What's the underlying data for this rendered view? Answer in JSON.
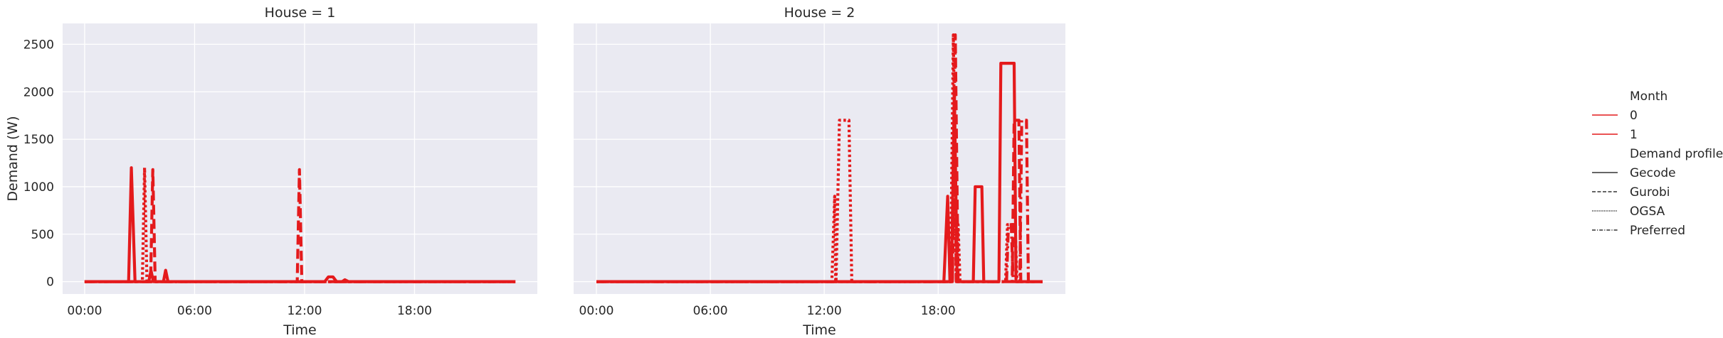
{
  "chart_data": {
    "type": "line",
    "panels": [
      {
        "title": "House = 1",
        "series": [
          {
            "month": "0",
            "profile": "Gecode",
            "points": [
              [
                0,
                0
              ],
              [
                2.4,
                0
              ],
              [
                2.55,
                1200
              ],
              [
                2.75,
                0
              ],
              [
                3.5,
                0
              ],
              [
                3.62,
                120
              ],
              [
                3.75,
                0
              ],
              [
                4.3,
                0
              ],
              [
                4.42,
                120
              ],
              [
                4.55,
                0
              ],
              [
                13.1,
                0
              ],
              [
                13.3,
                50
              ],
              [
                13.55,
                50
              ],
              [
                13.75,
                0
              ],
              [
                14.05,
                0
              ],
              [
                14.2,
                20
              ],
              [
                14.4,
                0
              ],
              [
                23.5,
                0
              ]
            ]
          },
          {
            "month": "0",
            "profile": "Gurobi",
            "points": [
              [
                0,
                0
              ],
              [
                3.6,
                0
              ],
              [
                3.72,
                1180
              ],
              [
                3.85,
                0
              ],
              [
                11.6,
                0
              ],
              [
                11.72,
                1180
              ],
              [
                11.85,
                0
              ],
              [
                23.5,
                0
              ]
            ]
          },
          {
            "month": "0",
            "profile": "OGSA",
            "points": [
              [
                0,
                0
              ],
              [
                3.15,
                0
              ],
              [
                3.27,
                1200
              ],
              [
                3.4,
                0
              ],
              [
                23.5,
                0
              ]
            ]
          },
          {
            "month": "0",
            "profile": "Preferred",
            "points": [
              [
                0,
                0
              ],
              [
                23.5,
                0
              ]
            ]
          }
        ]
      },
      {
        "title": "House = 2",
        "series": [
          {
            "month": "1",
            "profile": "Gecode",
            "points": [
              [
                0,
                0
              ],
              [
                18.3,
                0
              ],
              [
                18.5,
                900
              ],
              [
                18.62,
                0
              ],
              [
                18.7,
                0
              ],
              [
                18.85,
                2050
              ],
              [
                19.0,
                0
              ],
              [
                19.85,
                0
              ],
              [
                19.95,
                1000
              ],
              [
                20.3,
                1000
              ],
              [
                20.4,
                0
              ],
              [
                21.2,
                0
              ],
              [
                21.3,
                2300
              ],
              [
                22.0,
                2300
              ],
              [
                22.1,
                0
              ],
              [
                23.5,
                0
              ]
            ]
          },
          {
            "month": "1",
            "profile": "Gurobi",
            "points": [
              [
                0,
                0
              ],
              [
                18.75,
                0
              ],
              [
                18.9,
                2600
              ],
              [
                19.05,
                0
              ],
              [
                21.9,
                0
              ],
              [
                22.0,
                1700
              ],
              [
                22.25,
                1700
              ],
              [
                22.35,
                0
              ],
              [
                23.5,
                0
              ]
            ]
          },
          {
            "month": "1",
            "profile": "OGSA",
            "points": [
              [
                0,
                0
              ],
              [
                12.4,
                0
              ],
              [
                12.55,
                900
              ],
              [
                12.6,
                0
              ],
              [
                12.62,
                0
              ],
              [
                12.8,
                1700
              ],
              [
                13.3,
                1700
              ],
              [
                13.45,
                0
              ],
              [
                18.65,
                0
              ],
              [
                18.8,
                2600
              ],
              [
                18.95,
                0
              ],
              [
                19.05,
                600
              ],
              [
                19.15,
                0
              ],
              [
                21.55,
                0
              ],
              [
                21.65,
                600
              ],
              [
                22.05,
                600
              ],
              [
                22.15,
                0
              ],
              [
                23.5,
                0
              ]
            ]
          },
          {
            "month": "1",
            "profile": "Preferred",
            "points": [
              [
                0,
                0
              ],
              [
                18.75,
                0
              ],
              [
                18.85,
                1900
              ],
              [
                18.95,
                0
              ],
              [
                21.6,
                0
              ],
              [
                21.7,
                600
              ],
              [
                21.85,
                600
              ],
              [
                21.95,
                0
              ],
              [
                22.3,
                0
              ],
              [
                22.4,
                1700
              ],
              [
                22.65,
                1700
              ],
              [
                22.75,
                0
              ],
              [
                23.5,
                0
              ]
            ]
          }
        ]
      }
    ],
    "xlabel": "Time",
    "ylabel": "Demand (W)",
    "x_ticks": [
      {
        "value": 0,
        "label": "00:00"
      },
      {
        "value": 6,
        "label": "06:00"
      },
      {
        "value": 12,
        "label": "12:00"
      },
      {
        "value": 18,
        "label": "18:00"
      }
    ],
    "y_ticks": [
      0,
      500,
      1000,
      1500,
      2000,
      2500
    ],
    "xlim": [
      -1.2,
      24.7
    ],
    "ylim": [
      -130,
      2720
    ],
    "grid": true,
    "legend_placement": "right",
    "legend": {
      "hue_title": "Month",
      "hue_entries": [
        "0",
        "1"
      ],
      "style_title": "Demand profile",
      "style_entries": [
        "Gecode",
        "Gurobi",
        "OGSA",
        "Preferred"
      ]
    },
    "colors": {
      "line": "#e41a1c",
      "axes_bg": "#eaeaf2",
      "grid": "#ffffff",
      "text": "#262626"
    }
  }
}
